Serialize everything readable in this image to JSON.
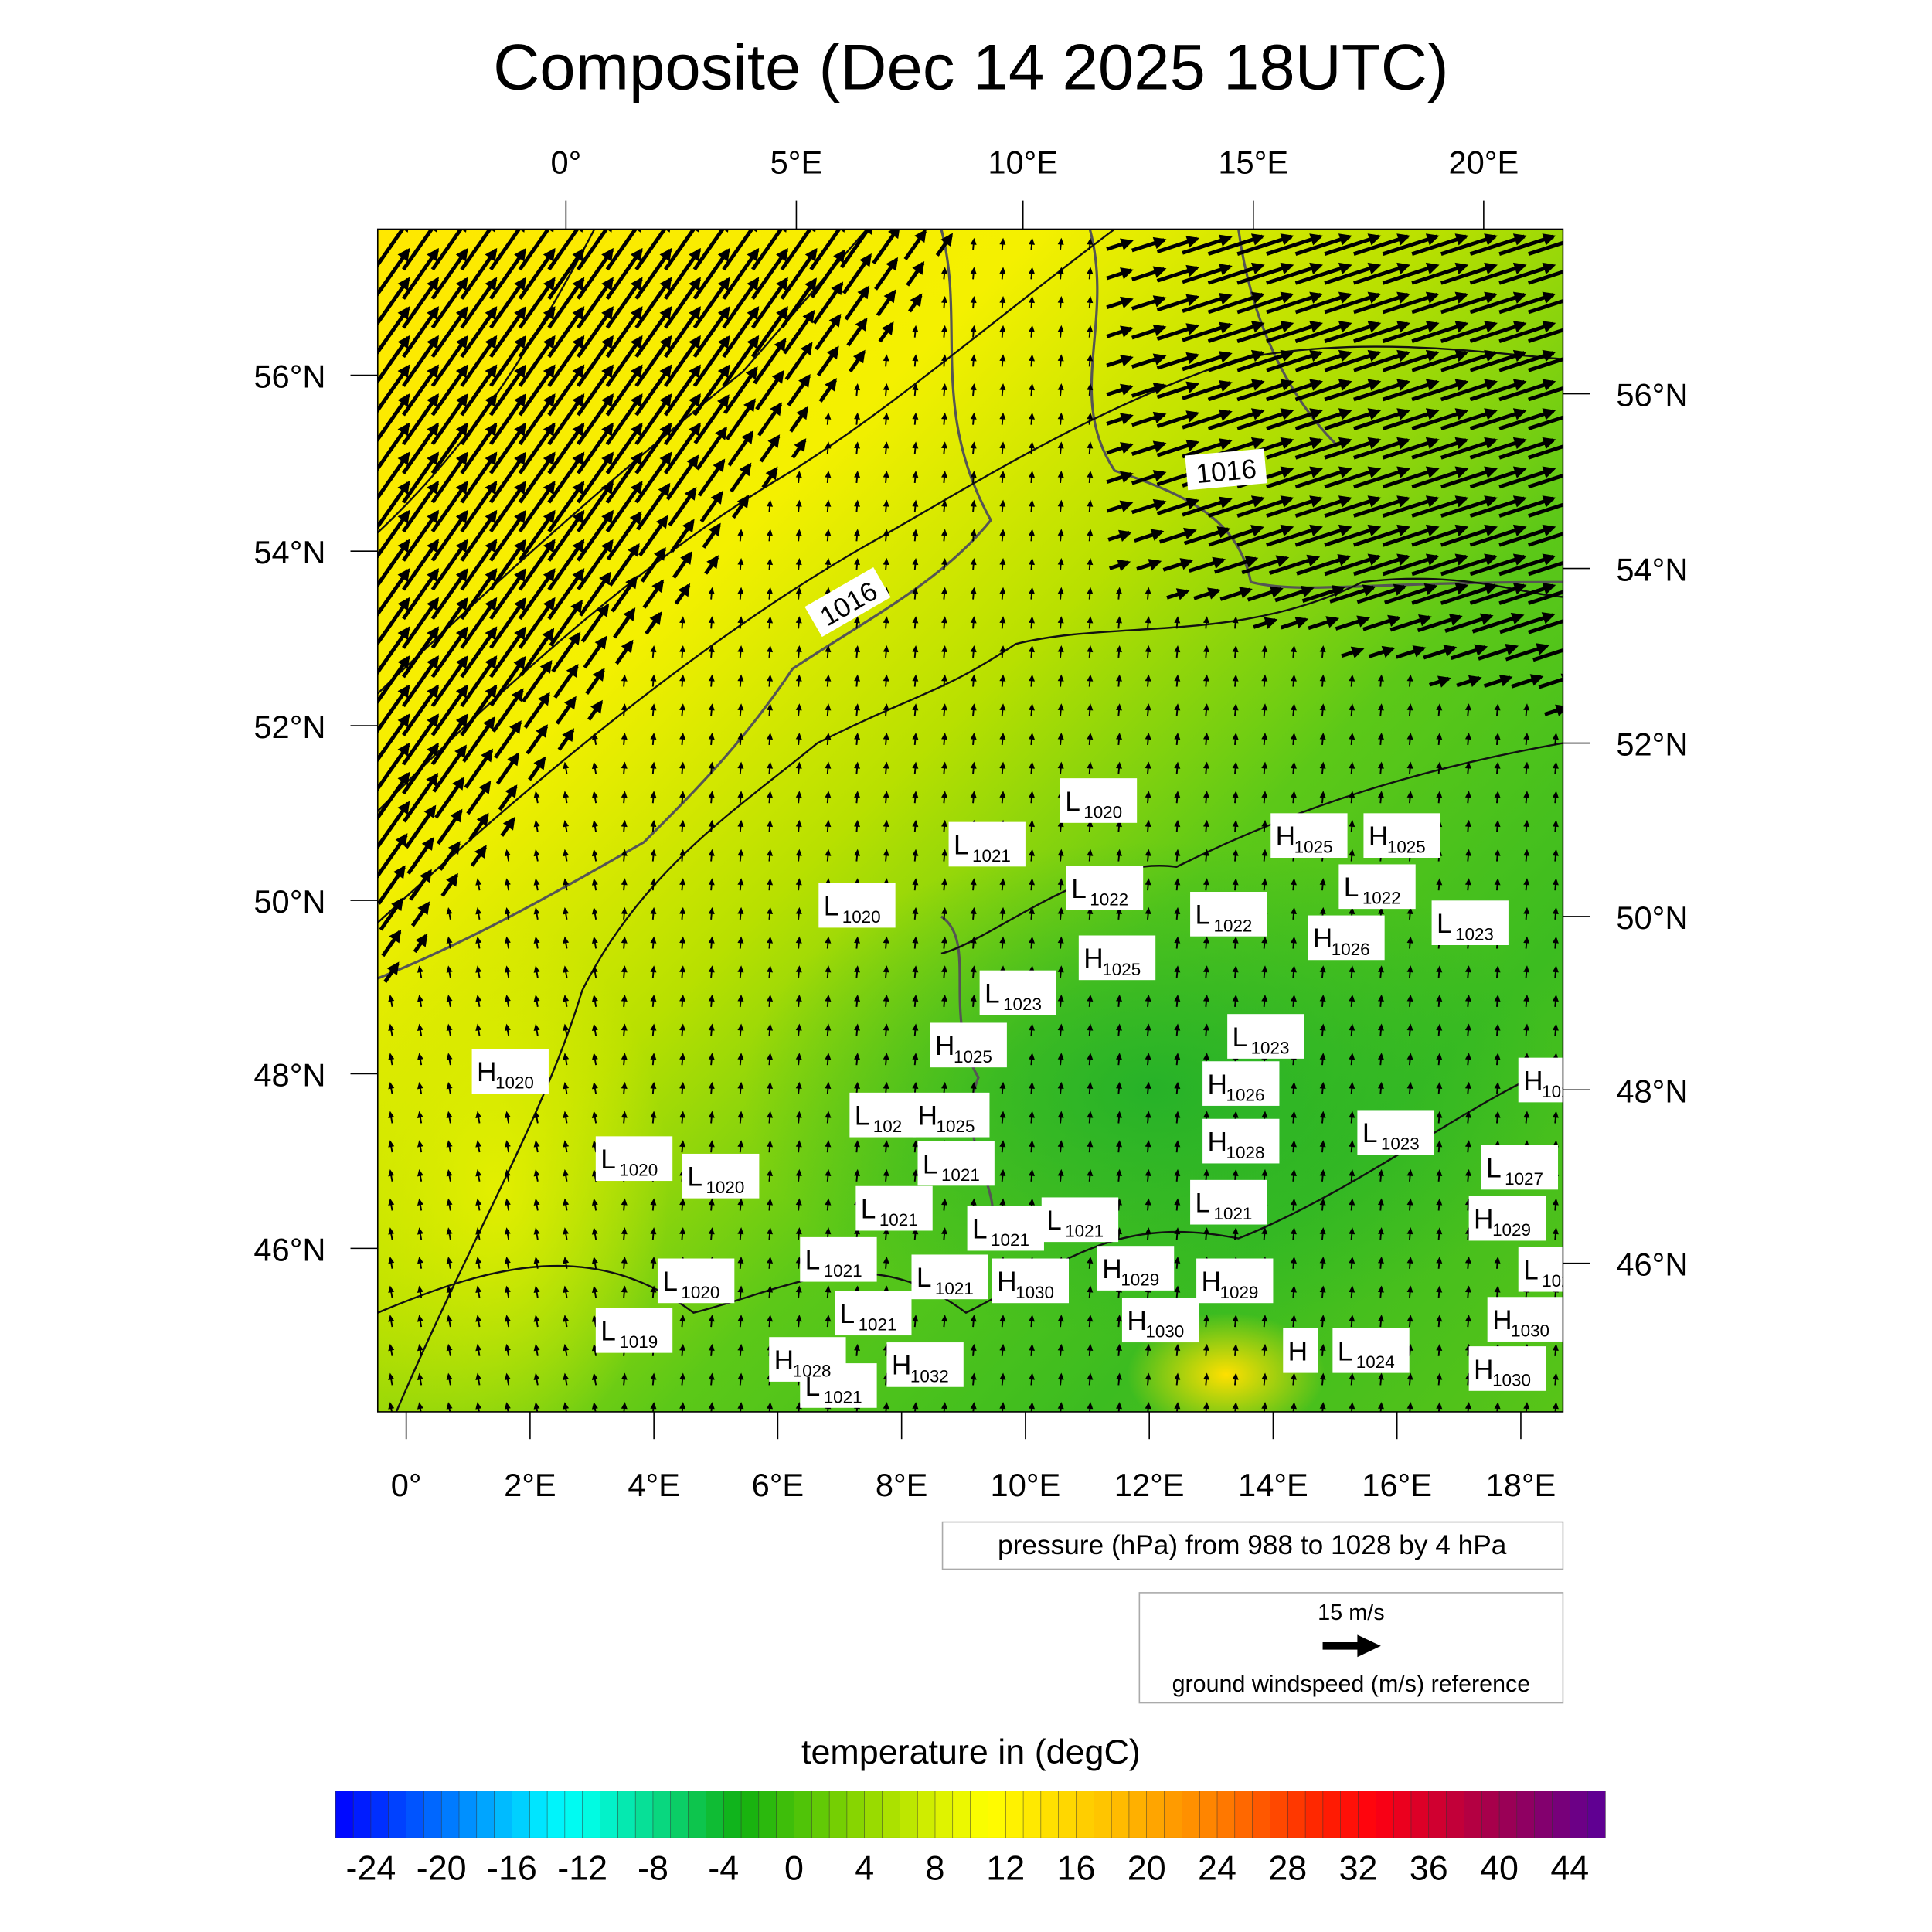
{
  "title": "Composite (Dec 14 2025 18UTC)",
  "axes": {
    "top_lon_labels": [
      "0°",
      "5°E",
      "10°E",
      "15°E",
      "20°E"
    ],
    "bottom_lon_labels": [
      "0°",
      "2°E",
      "4°E",
      "6°E",
      "8°E",
      "10°E",
      "12°E",
      "14°E",
      "16°E",
      "18°E"
    ],
    "left_lat_labels": [
      "56°N",
      "54°N",
      "52°N",
      "50°N",
      "48°N",
      "46°N"
    ],
    "right_lat_labels": [
      "56°N",
      "54°N",
      "52°N",
      "50°N",
      "48°N",
      "46°N"
    ]
  },
  "pressure_legend": "pressure (hPa) from 988 to 1028 by 4 hPa",
  "wind_reference": {
    "speed_label": "15 m/s",
    "caption": "ground windspeed (m/s) reference"
  },
  "isobar_labels": [
    "1016",
    "1016"
  ],
  "colorbar": {
    "title": "temperature in (degC)",
    "min": -26,
    "max": 46,
    "step": 1,
    "tick_labels": [
      "-24",
      "-20",
      "-16",
      "-12",
      "-8",
      "-4",
      "0",
      "4",
      "8",
      "12",
      "16",
      "20",
      "24",
      "28",
      "32",
      "36",
      "40",
      "44"
    ],
    "stops": [
      {
        "v": -26,
        "c": "#0000ff"
      },
      {
        "v": -20,
        "c": "#0070ff"
      },
      {
        "v": -14,
        "c": "#00f0ff"
      },
      {
        "v": -12,
        "c": "#00ffee"
      },
      {
        "v": -4,
        "c": "#10b828"
      },
      {
        "v": -3,
        "c": "#10b010"
      },
      {
        "v": 4,
        "c": "#90d800"
      },
      {
        "v": 8,
        "c": "#d8f000"
      },
      {
        "v": 11,
        "c": "#ffff00"
      },
      {
        "v": 18,
        "c": "#ffc000"
      },
      {
        "v": 24,
        "c": "#ff8000"
      },
      {
        "v": 30,
        "c": "#ff2000"
      },
      {
        "v": 33,
        "c": "#ff0010"
      },
      {
        "v": 40,
        "c": "#a00050"
      },
      {
        "v": 46,
        "c": "#5a0098"
      }
    ]
  },
  "chart_data": {
    "type": "heatmap",
    "title": "Composite (Dec 14 2025 18UTC)",
    "fields": [
      "temperature (degC)",
      "pressure contours (hPa)",
      "ground wind vectors (m/s)"
    ],
    "pressure_contour_range": [
      988,
      1028,
      4
    ],
    "lon_range": [
      -0.5,
      18.7
    ],
    "lat_range": [
      44.2,
      57.5
    ],
    "pressure_centers": [
      {
        "t": "L",
        "v": "1021",
        "lon": 9.0,
        "lat": 50.6
      },
      {
        "t": "L",
        "v": "1020",
        "lon": 10.8,
        "lat": 51.1
      },
      {
        "t": "L",
        "v": "1020",
        "lon": 6.9,
        "lat": 49.9
      },
      {
        "t": "L",
        "v": "1022",
        "lon": 10.9,
        "lat": 50.1
      },
      {
        "t": "L",
        "v": "1022",
        "lon": 12.9,
        "lat": 49.8
      },
      {
        "t": "H",
        "v": "1025",
        "lon": 14.2,
        "lat": 50.7
      },
      {
        "t": "H",
        "v": "1025",
        "lon": 15.7,
        "lat": 50.7
      },
      {
        "t": "L",
        "v": "1022",
        "lon": 15.3,
        "lat": 50.2
      },
      {
        "t": "H",
        "v": "1026",
        "lon": 14.8,
        "lat": 49.7
      },
      {
        "t": "L",
        "v": "1023",
        "lon": 16.8,
        "lat": 49.7
      },
      {
        "t": "H",
        "v": "1025",
        "lon": 11.1,
        "lat": 49.3
      },
      {
        "t": "L",
        "v": "1023",
        "lon": 9.5,
        "lat": 48.9
      },
      {
        "t": "H",
        "v": "1025",
        "lon": 8.7,
        "lat": 48.3
      },
      {
        "t": "L",
        "v": "1023",
        "lon": 13.5,
        "lat": 48.4
      },
      {
        "t": "H",
        "v": "1026",
        "lon": 13.1,
        "lat": 48.2
      },
      {
        "t": "H",
        "v": "1020",
        "lon": 1.3,
        "lat": 48.0
      },
      {
        "t": "H",
        "v": "102",
        "lon": 18.2,
        "lat": 47.9
      },
      {
        "t": "L",
        "v": "102",
        "lon": 7.4,
        "lat": 47.5
      },
      {
        "t": "H",
        "v": "1025",
        "lon": 8.3,
        "lat": 47.5
      },
      {
        "t": "L",
        "v": "1021",
        "lon": 8.5,
        "lat": 47.2
      },
      {
        "t": "H",
        "v": "1028",
        "lon": 13.1,
        "lat": 47.2
      },
      {
        "t": "L",
        "v": "1023",
        "lon": 15.6,
        "lat": 47.3
      },
      {
        "t": "L",
        "v": "1020",
        "lon": 3.3,
        "lat": 47.0
      },
      {
        "t": "L",
        "v": "1020",
        "lon": 4.7,
        "lat": 46.8
      },
      {
        "t": "L",
        "v": "1027",
        "lon": 17.6,
        "lat": 46.9
      },
      {
        "t": "L",
        "v": "1021",
        "lon": 7.5,
        "lat": 46.6
      },
      {
        "t": "L",
        "v": "1021",
        "lon": 12.9,
        "lat": 46.5
      },
      {
        "t": "H",
        "v": "1029",
        "lon": 17.4,
        "lat": 46.4
      },
      {
        "t": "L",
        "v": "1021",
        "lon": 6.6,
        "lat": 46.1
      },
      {
        "t": "L",
        "v": "1021",
        "lon": 9.3,
        "lat": 46.2
      },
      {
        "t": "L",
        "v": "1021",
        "lon": 10.5,
        "lat": 46.3
      },
      {
        "t": "H",
        "v": "1029",
        "lon": 11.4,
        "lat": 46.0
      },
      {
        "t": "L",
        "v": "102",
        "lon": 18.2,
        "lat": 45.9
      },
      {
        "t": "L",
        "v": "1021",
        "lon": 8.4,
        "lat": 45.9
      },
      {
        "t": "H",
        "v": "1029",
        "lon": 13.0,
        "lat": 45.6
      },
      {
        "t": "L",
        "v": "1020",
        "lon": 4.3,
        "lat": 45.6
      },
      {
        "t": "H",
        "v": "1030",
        "lon": 9.7,
        "lat": 45.6
      },
      {
        "t": "H",
        "v": "1030",
        "lon": 17.7,
        "lat": 45.5
      },
      {
        "t": "L",
        "v": "1021",
        "lon": 7.4,
        "lat": 45.4
      },
      {
        "t": "H",
        "v": "1032",
        "lon": 8.0,
        "lat": 45.15
      },
      {
        "t": "L",
        "v": "1019",
        "lon": 3.3,
        "lat": 45.2
      },
      {
        "t": "H",
        "v": "1030",
        "lon": 11.8,
        "lat": 45.15
      },
      {
        "t": "H",
        "v": "1028",
        "lon": 6.1,
        "lat": 44.7
      },
      {
        "t": "L",
        "v": "1021",
        "lon": 6.6,
        "lat": 44.4
      },
      {
        "t": "H",
        "v": "1030",
        "lon": 17.4,
        "lat": 44.85
      },
      {
        "t": "H",
        "v": "",
        "lon": 14.4,
        "lat": 44.8
      },
      {
        "t": "L",
        "v": "1024",
        "lon": 15.2,
        "lat": 44.8
      }
    ]
  }
}
